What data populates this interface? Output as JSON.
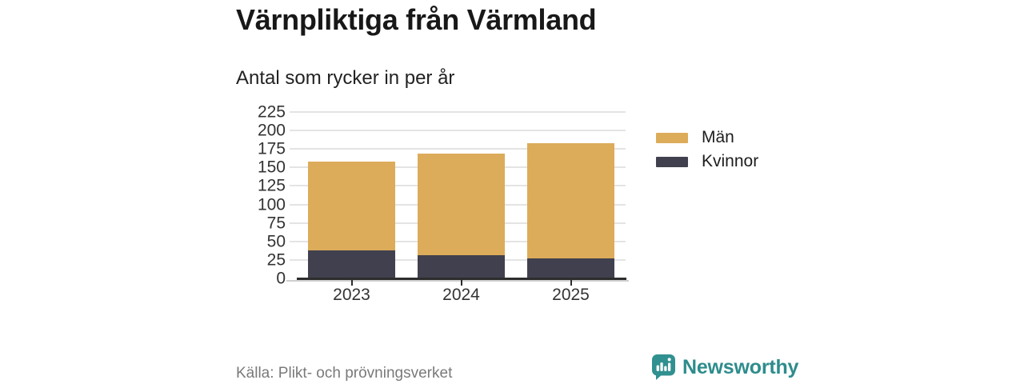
{
  "header": {
    "title": "Värnpliktiga från Värmland",
    "subtitle": "Antal som rycker in per år"
  },
  "chart_data": {
    "type": "bar",
    "stacked": true,
    "title": "Värnpliktiga från Värmland",
    "subtitle": "Antal som rycker in per år",
    "xlabel": "",
    "ylabel": "",
    "categories": [
      "2023",
      "2024",
      "2025"
    ],
    "series": [
      {
        "name": "Män",
        "color": "#DCAC5A",
        "values": [
          120,
          138,
          156
        ]
      },
      {
        "name": "Kvinnor",
        "color": "#41404E",
        "values": [
          38,
          31,
          27
        ]
      }
    ],
    "stack_order_bottom_to_top": [
      "Kvinnor",
      "Män"
    ],
    "stack_totals": [
      158,
      169,
      183
    ],
    "ylim": [
      0,
      225
    ],
    "ytick_step": 25,
    "grid": true,
    "legend_position": "right"
  },
  "footer": {
    "source": "Källa: Plikt- och prövningsverket",
    "brand": "Newsworthy"
  },
  "colors": {
    "axis": "#2d2d2d",
    "gridline": "#e4e4e4",
    "tick_text": "#333333",
    "title_text": "#181818",
    "source_text": "#7a7a7a",
    "brand_teal": "#2e8c8c",
    "bar_men": "#DCAC5A",
    "bar_women": "#41404E"
  }
}
